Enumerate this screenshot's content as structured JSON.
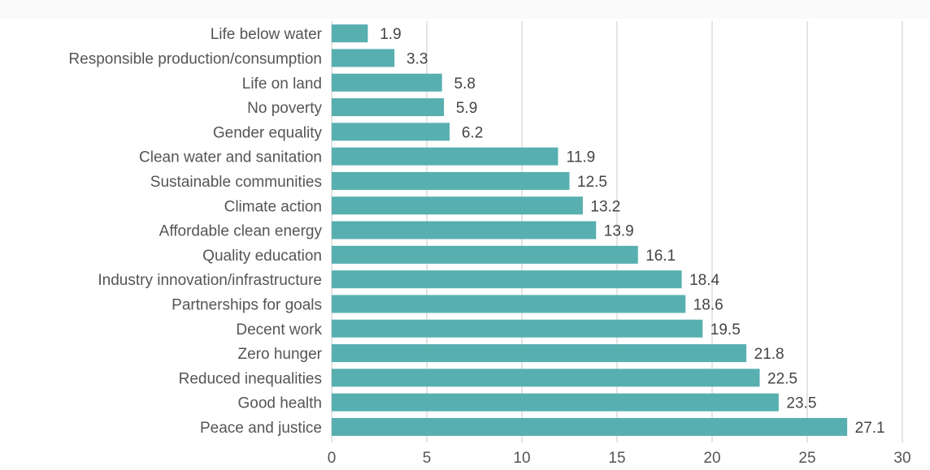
{
  "chart_data": {
    "type": "bar",
    "orientation": "horizontal",
    "title": "",
    "xlabel": "",
    "ylabel": "",
    "categories": [
      "Life below water",
      "Responsible production/consumption",
      "Life on land",
      "No poverty",
      "Gender equality",
      "Clean water and sanitation",
      "Sustainable communities",
      "Climate action",
      "Affordable clean energy",
      "Quality education",
      "Industry innovation/infrastructure",
      "Partnerships for goals",
      "Decent work",
      "Zero hunger",
      "Reduced inequalities",
      "Good health",
      "Peace and justice"
    ],
    "values": [
      1.9,
      3.3,
      5.8,
      5.9,
      6.2,
      11.9,
      12.5,
      13.2,
      13.9,
      16.1,
      18.4,
      18.6,
      19.5,
      21.8,
      22.5,
      23.5,
      27.1
    ],
    "value_labels": [
      "1.9",
      "3.3",
      "5.8",
      "5.9",
      "6.2",
      "11.9",
      "12.5",
      "13.2",
      "13.9",
      "16.1",
      "18.4",
      "18.6",
      "19.5",
      "21.8",
      "22.5",
      "23.5",
      "27.1"
    ],
    "xlim": [
      0,
      30
    ],
    "xticks": [
      0,
      5,
      10,
      15,
      20,
      25,
      30
    ],
    "xtick_labels": [
      "0",
      "5",
      "10",
      "15",
      "20",
      "25",
      "30"
    ],
    "grid": "vertical",
    "legend": "none",
    "bar_color": "#57afb0"
  }
}
